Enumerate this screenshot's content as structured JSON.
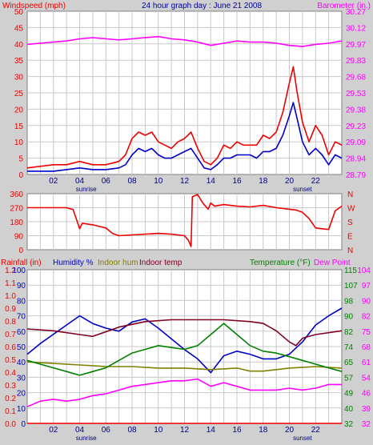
{
  "colors": {
    "background": "#d0d0d0",
    "plot_bg": "#ffffff",
    "grid": "#c8c8c8",
    "wind_avg": "#0000c8",
    "wind_gust": "#ee0000",
    "barometer": "#ff00ff",
    "wind_dir": "#ee0000",
    "rain": "#ee0000",
    "humidity": "#0000c8",
    "indoor_hum": "#808000",
    "indoor_temp": "#800020",
    "temperature": "#008000",
    "dew_point": "#ff00ff",
    "label_wind": "#ee0000",
    "label_title": "#0000a0",
    "label_baro": "#ff00ff"
  },
  "chart_data": [
    {
      "type": "line",
      "title": "24 hour graph day : June 21 2008",
      "left_axis_label": "Windspeed (mph)",
      "right_axis_label": "Barometer (in.)",
      "x_ticks": [
        "02",
        "04",
        "06",
        "08",
        "10",
        "12",
        "14",
        "16",
        "18",
        "20",
        "22"
      ],
      "x_markers": [
        {
          "label": "sunrise",
          "hour": 4.5
        },
        {
          "label": "sunset",
          "hour": 21.0
        }
      ],
      "left_ylim": [
        0,
        50
      ],
      "left_ticks": [
        "0",
        "2.5",
        "5",
        "7.5",
        "10",
        "12.5",
        "15",
        "17.5",
        "20",
        "22.5",
        "25",
        "27.5",
        "30",
        "32.5",
        "35",
        "37.5",
        "40",
        "42.5",
        "45",
        "47.5",
        "50"
      ],
      "right_ylim": [
        28.79,
        30.27
      ],
      "right_ticks": [
        "28.79",
        "28.94",
        "29.09",
        "29.23",
        "29.38",
        "29.53",
        "29.68",
        "29.83",
        "29.97",
        "30.12",
        "30.27"
      ],
      "series": [
        {
          "name": "Barometer",
          "axis": "right",
          "x": [
            0,
            1,
            2,
            3,
            4,
            5,
            6,
            7,
            8,
            9,
            10,
            11,
            12,
            13,
            14,
            15,
            16,
            17,
            18,
            19,
            20,
            21,
            22,
            23,
            24
          ],
          "y": [
            29.97,
            29.98,
            29.99,
            30.0,
            30.02,
            30.03,
            30.02,
            30.01,
            30.02,
            30.03,
            30.04,
            30.02,
            30.01,
            29.99,
            29.96,
            29.98,
            30.0,
            29.99,
            29.99,
            29.98,
            29.96,
            29.95,
            29.97,
            29.98,
            30.0
          ]
        },
        {
          "name": "Wind gust",
          "axis": "left",
          "x": [
            0,
            1,
            2,
            3,
            4,
            5,
            6,
            7,
            7.5,
            8,
            8.5,
            9,
            9.5,
            10,
            10.5,
            11,
            11.5,
            12,
            12.5,
            13,
            13.5,
            14,
            14.5,
            15,
            15.5,
            16,
            16.5,
            17,
            17.5,
            18,
            18.5,
            19,
            19.5,
            20,
            20.3,
            20.6,
            21,
            21.5,
            22,
            22.5,
            23,
            23.5,
            24
          ],
          "y": [
            2,
            2.5,
            3,
            3,
            4,
            3,
            3,
            4,
            6,
            11,
            13,
            12,
            13,
            10,
            9,
            8,
            10,
            11,
            13,
            8,
            4,
            3,
            5,
            9,
            8,
            10,
            9,
            9,
            9,
            12,
            11,
            13,
            19,
            28,
            33,
            25,
            16,
            10,
            15,
            12,
            6,
            10,
            9
          ]
        },
        {
          "name": "Wind average",
          "axis": "left",
          "x": [
            0,
            1,
            2,
            3,
            4,
            5,
            6,
            7,
            7.5,
            8,
            8.5,
            9,
            9.5,
            10,
            10.5,
            11,
            11.5,
            12,
            12.5,
            13,
            13.5,
            14,
            14.5,
            15,
            15.5,
            16,
            16.5,
            17,
            17.5,
            18,
            18.5,
            19,
            19.5,
            20,
            20.3,
            20.6,
            21,
            21.5,
            22,
            22.5,
            23,
            23.5,
            24
          ],
          "y": [
            1,
            1,
            1,
            1.5,
            2,
            1.5,
            1.5,
            2,
            3,
            6,
            8,
            7,
            8,
            6,
            5,
            5,
            6,
            7,
            8,
            5,
            2,
            1.5,
            3,
            5,
            5,
            6,
            6,
            6,
            5,
            7,
            7,
            8,
            12,
            18,
            22,
            17,
            10,
            6,
            8,
            6,
            3,
            6,
            5
          ]
        }
      ]
    },
    {
      "type": "line",
      "left_ticks": [
        "0",
        "90",
        "180",
        "270",
        "360"
      ],
      "right_ticks": [
        "N",
        "E",
        "S",
        "W",
        "N"
      ],
      "ylim": [
        0,
        360
      ],
      "series": [
        {
          "name": "Wind direction",
          "x": [
            0,
            3,
            3.5,
            4,
            4.2,
            5,
            6,
            6.5,
            7,
            8,
            9,
            10,
            11,
            12,
            12.3,
            12.5,
            12.6,
            13,
            13.4,
            13.8,
            14,
            14.3,
            15,
            16,
            17,
            18,
            19,
            20,
            20.5,
            21,
            21.5,
            22,
            22.5,
            23,
            23.5,
            24
          ],
          "y": [
            270,
            270,
            258,
            135,
            170,
            160,
            140,
            105,
            90,
            95,
            100,
            105,
            100,
            90,
            60,
            20,
            340,
            355,
            300,
            260,
            300,
            280,
            290,
            280,
            275,
            285,
            270,
            260,
            255,
            240,
            200,
            140,
            135,
            130,
            250,
            280
          ]
        }
      ]
    },
    {
      "type": "line",
      "labels": [
        "Rainfall (in)",
        "Humidity %",
        "Indoor hum",
        "Indoor temp",
        "Temperature (°F)",
        "Dew Point"
      ],
      "rain_ticks": [
        "0.0",
        "0.1",
        "0.2",
        "0.3",
        "0.4",
        "0.5",
        "0.6",
        "0.7",
        "0.8",
        "0.9",
        "1.0",
        "1.1",
        "1.2"
      ],
      "hum_ticks": [
        "0",
        "10",
        "20",
        "30",
        "40",
        "50",
        "60",
        "70",
        "80",
        "90",
        "100"
      ],
      "temp_ticks": [
        "32",
        "40",
        "49",
        "57",
        "65",
        "74",
        "82",
        "90",
        "98",
        "107",
        "115"
      ],
      "temp_right_ticks": [
        "32",
        "39",
        "46",
        "54",
        "61",
        "68",
        "75",
        "82",
        "90",
        "97",
        "104"
      ],
      "hum_ylim": [
        0,
        100
      ],
      "temp_ylim": [
        32,
        115
      ],
      "series": [
        {
          "name": "Rainfall",
          "axis": "rain",
          "x": [
            0,
            24
          ],
          "y": [
            0,
            0
          ]
        },
        {
          "name": "Humidity",
          "axis": "hum",
          "x": [
            0,
            1,
            2,
            3,
            4,
            5,
            6,
            7,
            8,
            9,
            10,
            11,
            12,
            13,
            14,
            15,
            16,
            17,
            18,
            19,
            20,
            21,
            22,
            23,
            24
          ],
          "y": [
            45,
            52,
            58,
            64,
            70,
            65,
            62,
            60,
            66,
            68,
            62,
            55,
            48,
            42,
            33,
            44,
            47,
            45,
            42,
            42,
            45,
            53,
            64,
            70,
            75
          ]
        },
        {
          "name": "Indoor hum",
          "axis": "hum",
          "x": [
            0,
            2,
            4,
            6,
            8,
            10,
            12,
            14,
            16,
            17,
            18,
            20,
            22,
            24
          ],
          "y": [
            40,
            39,
            38,
            37,
            37,
            36,
            36,
            35,
            36,
            34,
            34,
            36,
            37,
            36
          ]
        },
        {
          "name": "Indoor temp",
          "axis": "temp",
          "x": [
            0,
            2,
            4,
            5,
            7,
            9,
            11,
            13,
            15,
            17,
            18,
            19,
            20,
            20.5,
            21,
            22,
            24
          ],
          "y": [
            83,
            82,
            80,
            79,
            84,
            87,
            88,
            88,
            88,
            87,
            86,
            82,
            76,
            74,
            78,
            80,
            82
          ]
        },
        {
          "name": "Temperature",
          "axis": "temp",
          "x": [
            0,
            1,
            2,
            3,
            4,
            5,
            6,
            7,
            8,
            9,
            10,
            11,
            12,
            13,
            14,
            15,
            16,
            17,
            18,
            19,
            20,
            21,
            22,
            23,
            24
          ],
          "y": [
            66,
            64,
            62,
            60,
            58,
            60,
            62,
            66,
            70,
            72,
            74,
            73,
            72,
            74,
            80,
            86,
            80,
            74,
            71,
            70,
            68,
            66,
            64,
            62,
            60
          ]
        },
        {
          "name": "Dew Point",
          "axis": "temp",
          "x": [
            0,
            1,
            2,
            3,
            4,
            5,
            6,
            7,
            8,
            9,
            10,
            11,
            12,
            13,
            14,
            15,
            16,
            17,
            18,
            19,
            20,
            21,
            22,
            23,
            24
          ],
          "y": [
            41,
            44,
            45,
            44,
            45,
            47,
            48,
            50,
            52,
            53,
            54,
            55,
            55,
            56,
            52,
            54,
            52,
            50,
            50,
            50,
            51,
            50,
            51,
            53,
            53
          ]
        }
      ]
    }
  ]
}
